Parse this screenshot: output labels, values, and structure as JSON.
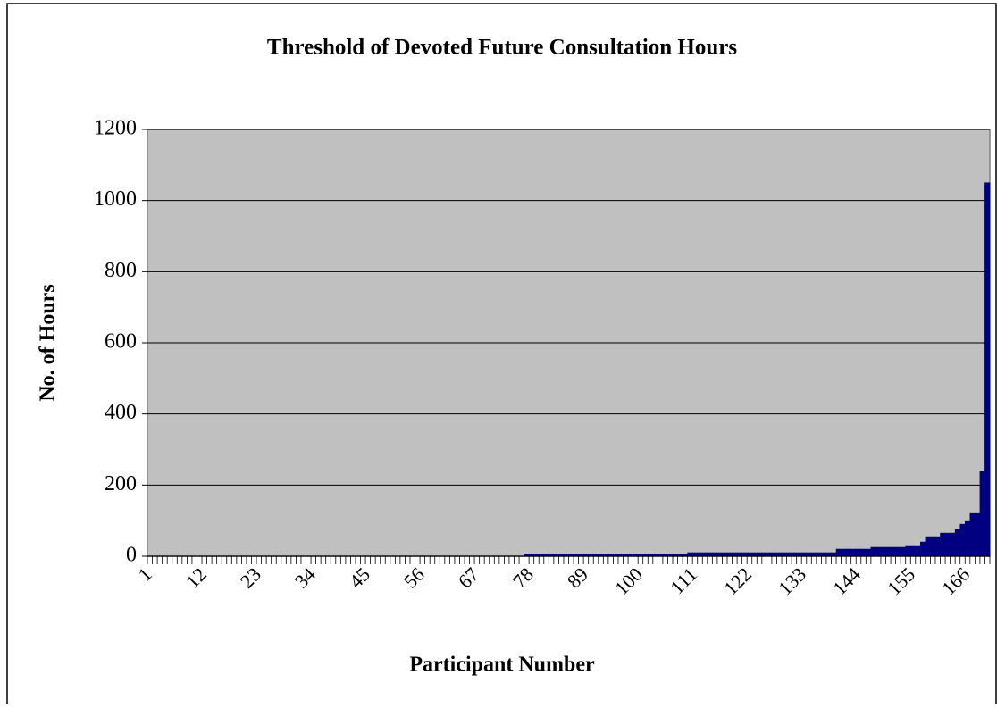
{
  "chart_data": {
    "type": "bar",
    "title": "Threshold of Devoted Future Consultation Hours",
    "x_label": "Participant Number",
    "y_label": "No. of Hours",
    "color": "#000080",
    "ylim": [
      0,
      1200
    ],
    "yticks": [
      0,
      200,
      400,
      600,
      800,
      1000,
      1200
    ],
    "grid": true,
    "categories": [
      "1",
      null,
      null,
      null,
      null,
      null,
      null,
      null,
      null,
      null,
      null,
      "12",
      null,
      null,
      null,
      null,
      null,
      null,
      null,
      null,
      null,
      null,
      "23",
      null,
      null,
      null,
      null,
      null,
      null,
      null,
      null,
      null,
      null,
      "34",
      null,
      null,
      null,
      null,
      null,
      null,
      null,
      null,
      null,
      null,
      "45",
      null,
      null,
      null,
      null,
      null,
      null,
      null,
      null,
      null,
      null,
      "56",
      null,
      null,
      null,
      null,
      null,
      null,
      null,
      null,
      null,
      null,
      "67",
      null,
      null,
      null,
      null,
      null,
      null,
      null,
      null,
      null,
      null,
      "78",
      null,
      null,
      null,
      null,
      null,
      null,
      null,
      null,
      null,
      null,
      "89",
      null,
      null,
      null,
      null,
      null,
      null,
      null,
      null,
      null,
      null,
      "100",
      null,
      null,
      null,
      null,
      null,
      null,
      null,
      null,
      null,
      null,
      "111",
      null,
      null,
      null,
      null,
      null,
      null,
      null,
      null,
      null,
      null,
      "122",
      null,
      null,
      null,
      null,
      null,
      null,
      null,
      null,
      null,
      null,
      "133",
      null,
      null,
      null,
      null,
      null,
      null,
      null,
      null,
      null,
      null,
      "144",
      null,
      null,
      null,
      null,
      null,
      null,
      null,
      null,
      null,
      null,
      "155",
      null,
      null,
      null,
      null,
      null,
      null,
      null,
      null,
      null,
      null,
      "166",
      null,
      null,
      null,
      null
    ],
    "values": [
      0,
      0,
      0,
      0,
      0,
      0,
      0,
      0,
      0,
      0,
      0,
      0,
      0,
      0,
      0,
      0,
      0,
      0,
      0,
      0,
      0,
      0,
      0,
      0,
      0,
      0,
      0,
      0,
      0,
      0,
      0,
      0,
      0,
      0,
      0,
      0,
      0,
      0,
      0,
      0,
      0,
      0,
      0,
      0,
      0,
      0,
      0,
      0,
      0,
      0,
      0,
      0,
      0,
      0,
      0,
      0,
      0,
      0,
      0,
      0,
      0,
      0,
      0,
      0,
      0,
      0,
      0,
      0,
      0,
      0,
      0,
      0,
      0,
      0,
      0,
      0,
      5,
      5,
      5,
      5,
      5,
      5,
      5,
      5,
      5,
      5,
      5,
      5,
      5,
      5,
      5,
      5,
      5,
      5,
      5,
      5,
      5,
      5,
      5,
      5,
      5,
      5,
      5,
      5,
      5,
      5,
      5,
      5,
      5,
      10,
      10,
      10,
      10,
      10,
      10,
      10,
      10,
      10,
      10,
      10,
      10,
      10,
      10,
      10,
      10,
      10,
      10,
      10,
      10,
      10,
      10,
      10,
      10,
      10,
      10,
      10,
      10,
      10,
      10,
      20,
      20,
      20,
      20,
      20,
      20,
      20,
      25,
      25,
      25,
      25,
      25,
      25,
      25,
      30,
      30,
      30,
      40,
      55,
      55,
      55,
      65,
      65,
      65,
      75,
      90,
      100,
      120,
      120,
      240,
      1050
    ]
  }
}
